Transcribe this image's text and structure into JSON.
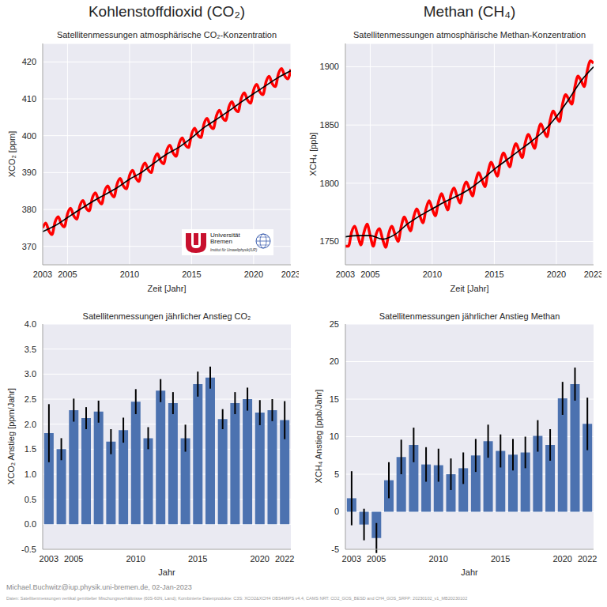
{
  "figure_titles": [
    "Kohlenstoffdioxid (CO₂)",
    "Methan (CH₄)"
  ],
  "logo": {
    "lines": [
      "Universität",
      "Bremen"
    ],
    "subtitle": "Institut für Umweltphysik(IUP)"
  },
  "footer": [
    "Michael.Buchwitz@iup.physik.uni-bremen.de, 02-Jan-2023",
    "Daten: Satellitenmessungen vertikal gemittelter Mischungsverhältnisse (60S-60N, Land); Kombinierte Datenprodukte: C3S: XCO2&XCH4 OBS4MIPS v4.4, CAMS NRT: CO2_GOS_BESD and CH4_GOS_SRFP: 20230102_v1_MB20230102"
  ],
  "chart_data": [
    {
      "type": "line",
      "title": "Satellitenmessungen atmosphärische CO₂-Konzentration",
      "x_label": "Zeit [Jahr]",
      "y_label": "XCO₂ [ppm]",
      "xlim": [
        2003,
        2023
      ],
      "xticks": [
        2003,
        2005,
        2010,
        2015,
        2020,
        2023
      ],
      "ylim": [
        365,
        425
      ],
      "yticks": [
        370,
        380,
        390,
        400,
        410,
        420
      ],
      "grid": true,
      "series": [
        {
          "color": "#ff0000",
          "x": [
            2003,
            2003.25,
            2003.5,
            2003.75,
            2004,
            2004.25,
            2004.5,
            2004.75,
            2005,
            2005.25,
            2005.5,
            2005.75,
            2006,
            2006.25,
            2006.5,
            2006.75,
            2007,
            2007.25,
            2007.5,
            2007.75,
            2008,
            2008.25,
            2008.5,
            2008.75,
            2009,
            2009.25,
            2009.5,
            2009.75,
            2010,
            2010.25,
            2010.5,
            2010.75,
            2011,
            2011.25,
            2011.5,
            2011.75,
            2012,
            2012.25,
            2012.5,
            2012.75,
            2013,
            2013.25,
            2013.5,
            2013.75,
            2014,
            2014.25,
            2014.5,
            2014.75,
            2015,
            2015.25,
            2015.5,
            2015.75,
            2016,
            2016.25,
            2016.5,
            2016.75,
            2017,
            2017.25,
            2017.5,
            2017.75,
            2018,
            2018.25,
            2018.5,
            2018.75,
            2019,
            2019.25,
            2019.5,
            2019.75,
            2020,
            2020.25,
            2020.5,
            2020.75,
            2021,
            2021.25,
            2021.5,
            2021.75,
            2022,
            2022.25,
            2022.5,
            2022.75,
            2023
          ],
          "values": [
            375.0,
            376.3,
            374.2,
            373.2,
            376.6,
            378.0,
            376.1,
            375.3,
            378.8,
            380.3,
            378.3,
            377.4,
            381.0,
            382.4,
            380.4,
            379.6,
            383.1,
            384.5,
            382.5,
            381.5,
            385.0,
            386.4,
            384.4,
            383.4,
            386.9,
            388.4,
            386.4,
            385.6,
            389.2,
            390.6,
            388.6,
            387.6,
            391.1,
            392.6,
            390.8,
            390.0,
            393.6,
            395.1,
            393.2,
            392.4,
            396.0,
            397.4,
            395.4,
            394.4,
            397.9,
            399.4,
            397.5,
            396.8,
            400.4,
            402.0,
            400.2,
            399.5,
            403.2,
            404.7,
            402.7,
            401.9,
            405.4,
            406.9,
            404.9,
            404.1,
            407.7,
            409.2,
            407.3,
            406.5,
            410.1,
            411.6,
            409.7,
            408.8,
            412.4,
            413.9,
            411.9,
            411.1,
            414.6,
            416.1,
            414.1,
            413.3,
            416.8,
            418.2,
            416.3,
            415.4,
            418.0
          ]
        },
        {
          "color": "#000000",
          "x": [
            2003,
            2004,
            2005,
            2006,
            2007,
            2008,
            2009,
            2010,
            2011,
            2012,
            2013,
            2014,
            2015,
            2016,
            2017,
            2018,
            2019,
            2020,
            2021,
            2022,
            2023
          ],
          "values": [
            374.0,
            375.6,
            377.8,
            380.0,
            382.1,
            384.0,
            385.9,
            388.2,
            390.1,
            392.6,
            395.0,
            396.9,
            399.4,
            402.2,
            404.4,
            406.7,
            409.1,
            411.4,
            413.6,
            415.8,
            417.6
          ]
        }
      ]
    },
    {
      "type": "line",
      "title": "Satellitenmessungen atmosphärische Methan-Konzentration",
      "x_label": "Zeit [Jahr]",
      "y_label": "XCH₄ [ppb]",
      "xlim": [
        2003,
        2023
      ],
      "xticks": [
        2003,
        2005,
        2010,
        2015,
        2020,
        2023
      ],
      "ylim": [
        1730,
        1920
      ],
      "yticks": [
        1750,
        1800,
        1850,
        1900
      ],
      "grid": true,
      "series": [
        {
          "color": "#ff0000",
          "x": [
            2003,
            2003.25,
            2003.5,
            2003.75,
            2004,
            2004.25,
            2004.5,
            2004.75,
            2005,
            2005.25,
            2005.5,
            2005.75,
            2006,
            2006.25,
            2006.5,
            2006.75,
            2007,
            2007.25,
            2007.5,
            2007.75,
            2008,
            2008.25,
            2008.5,
            2008.75,
            2009,
            2009.25,
            2009.5,
            2009.75,
            2010,
            2010.25,
            2010.5,
            2010.75,
            2011,
            2011.25,
            2011.5,
            2011.75,
            2012,
            2012.25,
            2012.5,
            2012.75,
            2013,
            2013.25,
            2013.5,
            2013.75,
            2014,
            2014.25,
            2014.5,
            2014.75,
            2015,
            2015.25,
            2015.5,
            2015.75,
            2016,
            2016.25,
            2016.5,
            2016.75,
            2017,
            2017.25,
            2017.5,
            2017.75,
            2018,
            2018.25,
            2018.5,
            2018.75,
            2019,
            2019.25,
            2019.5,
            2019.75,
            2020,
            2020.25,
            2020.5,
            2020.75,
            2021,
            2021.25,
            2021.5,
            2021.75,
            2022,
            2022.25,
            2022.5,
            2022.75,
            2023
          ],
          "values": [
            1746,
            1746,
            1758,
            1763,
            1755,
            1747,
            1758,
            1765,
            1755,
            1746,
            1757,
            1761,
            1752,
            1745,
            1757,
            1763,
            1756,
            1750,
            1763,
            1771,
            1765,
            1759,
            1771,
            1778,
            1772,
            1766,
            1778,
            1785,
            1778,
            1772,
            1784,
            1791,
            1784,
            1777,
            1790,
            1796,
            1789,
            1783,
            1795,
            1801,
            1795,
            1789,
            1802,
            1809,
            1803,
            1797,
            1810,
            1818,
            1812,
            1806,
            1819,
            1826,
            1820,
            1814,
            1827,
            1834,
            1828,
            1822,
            1835,
            1842,
            1836,
            1830,
            1843,
            1851,
            1845,
            1840,
            1854,
            1862,
            1857,
            1853,
            1868,
            1876,
            1872,
            1868,
            1883,
            1892,
            1888,
            1883,
            1897,
            1905,
            1903
          ]
        },
        {
          "color": "#000000",
          "x": [
            2003,
            2004,
            2005,
            2006,
            2007,
            2008,
            2009,
            2010,
            2011,
            2012,
            2013,
            2014,
            2015,
            2016,
            2017,
            2018,
            2019,
            2020,
            2021,
            2022,
            2023
          ],
          "values": [
            1754,
            1755,
            1755,
            1752,
            1756,
            1765,
            1772,
            1778,
            1784,
            1789,
            1795,
            1803,
            1812,
            1820,
            1828,
            1836,
            1845,
            1857,
            1872,
            1888,
            1900
          ]
        }
      ]
    },
    {
      "type": "bar",
      "title": "Satellitenmessungen jährlicher Anstieg CO₂",
      "x_label": "Jahr",
      "y_label": "XCO₂ Anstieg [ppm/Jahr]",
      "categories": [
        "2003",
        null,
        "2005",
        null,
        null,
        null,
        null,
        "2010",
        null,
        null,
        null,
        null,
        "2015",
        null,
        null,
        null,
        null,
        "2020",
        null,
        "2022"
      ],
      "values": [
        1.82,
        1.5,
        2.28,
        2.12,
        2.25,
        1.65,
        1.88,
        2.45,
        1.72,
        2.67,
        2.42,
        1.72,
        2.8,
        2.93,
        2.1,
        2.42,
        2.5,
        2.23,
        2.28,
        2.08
      ],
      "errors": [
        0.58,
        0.22,
        0.23,
        0.22,
        0.22,
        0.25,
        0.25,
        0.25,
        0.22,
        0.23,
        0.22,
        0.27,
        0.25,
        0.22,
        0.2,
        0.22,
        0.23,
        0.25,
        0.22,
        0.38
      ],
      "color": "#4c72b0",
      "ylim": [
        -0.5,
        4
      ],
      "yticks": [
        -0.5,
        {
          "value": 0,
          "label": "0.0"
        },
        0.5,
        {
          "value": 1,
          "label": "1.0"
        },
        1.5,
        {
          "value": 2,
          "label": "2.0"
        },
        2.5,
        {
          "value": 3,
          "label": "3.0"
        },
        3.5,
        {
          "value": 4,
          "label": "4.0"
        }
      ],
      "grid": true
    },
    {
      "type": "bar",
      "title": "Satellitenmessungen jährlicher Anstieg Methan",
      "x_label": "Jahr",
      "y_label": "XCH₄ Anstieg [ppb/Jahr]",
      "categories": [
        "2003",
        null,
        "2005",
        null,
        null,
        null,
        null,
        "2010",
        null,
        null,
        null,
        null,
        "2015",
        null,
        null,
        null,
        null,
        "2020",
        null,
        "2022"
      ],
      "values": [
        1.8,
        -1.7,
        -3.5,
        4.2,
        7.3,
        8.9,
        6.3,
        6.2,
        5.0,
        5.8,
        7.5,
        9.4,
        8.1,
        7.6,
        7.9,
        10.1,
        8.9,
        15.1,
        17.0,
        11.7
      ],
      "errors": [
        3.6,
        2.1,
        2.0,
        2.4,
        2.3,
        2.3,
        2.3,
        2.2,
        2.1,
        2.1,
        2.2,
        2.2,
        2.2,
        2.1,
        2.1,
        2.1,
        2.1,
        2.2,
        2.2,
        3.5
      ],
      "color": "#4c72b0",
      "ylim": [
        -5,
        25
      ],
      "yticks": [
        -5,
        0,
        5,
        10,
        15,
        20,
        25
      ],
      "grid": true
    }
  ]
}
